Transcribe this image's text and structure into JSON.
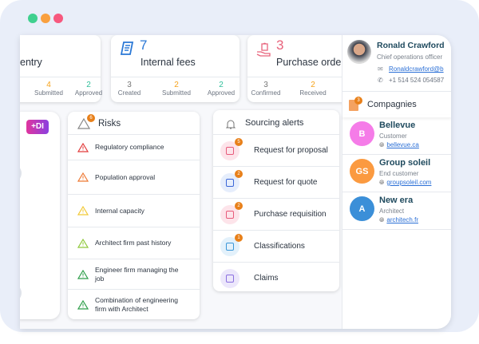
{
  "window_controls": {
    "colors": [
      "#3fd08f",
      "#f9a03f",
      "#f7587e"
    ]
  },
  "cards": [
    {
      "title": "entry",
      "stats": [
        {
          "value": "4",
          "label": "Submitted"
        },
        {
          "value": "2",
          "label": "Approved"
        }
      ]
    },
    {
      "count": "7",
      "title": "Internal fees",
      "icon": "receipt-icon",
      "stats": [
        {
          "value": "3",
          "label": "Created"
        },
        {
          "value": "2",
          "label": "Submitted"
        },
        {
          "value": "2",
          "label": "Approved"
        }
      ]
    },
    {
      "count": "3",
      "title": "Purchase orders",
      "icon": "hand-bag-icon",
      "stats": [
        {
          "value": "3",
          "label": "Confirmed"
        },
        {
          "value": "2",
          "label": "Received"
        }
      ]
    }
  ],
  "di_badge": "+DI",
  "risks": {
    "title": "Risks",
    "badge": "6",
    "items": [
      {
        "label": "Regulatory compliance",
        "color": "#e23b3b"
      },
      {
        "label": "Population approval",
        "color": "#ee7a35"
      },
      {
        "label": "Internal capacity",
        "color": "#f2c936"
      },
      {
        "label": "Architect firm past history",
        "color": "#8fc83a"
      },
      {
        "label": "Engineer firm managing the job",
        "color": "#2e9e4a"
      },
      {
        "label": "Combination of engineering firm with Architect",
        "color": "#2e9e4a"
      }
    ]
  },
  "sourcing": {
    "title": "Sourcing alerts",
    "items": [
      {
        "label": "Request for proposal",
        "badge": "5",
        "bg": "#fde4ea",
        "fg": "#e85a7a"
      },
      {
        "label": "Request for quote",
        "badge": "2",
        "bg": "#e6eefc",
        "fg": "#3a66d8"
      },
      {
        "label": "Purchase requisition",
        "badge": "2",
        "bg": "#fde4ea",
        "fg": "#e85a7a"
      },
      {
        "label": "Classifications",
        "badge": "1",
        "bg": "#e3f1fb",
        "fg": "#3a96d8"
      },
      {
        "label": "Claims",
        "badge": "",
        "bg": "#ece7fb",
        "fg": "#8a6ee0"
      }
    ]
  },
  "profile": {
    "name": "Ronald Crawford",
    "title": "Chief operations officer",
    "email": "Ronaldcrawford@b",
    "phone": "+1 514 524 054587"
  },
  "companies": {
    "title": "Compagnies",
    "badge": "3",
    "items": [
      {
        "initials": "B",
        "name": "Bellevue",
        "type": "Customer",
        "site": "bellevue.ca",
        "color": "#f57ce8"
      },
      {
        "initials": "GS",
        "name": "Group soleil",
        "type": "End customer",
        "site": "groupsoleil.com",
        "color": "#fb9a40"
      },
      {
        "initials": "A",
        "name": "New era",
        "type": "Architect",
        "site": "architech.fr",
        "color": "#3b8fd8"
      }
    ]
  }
}
